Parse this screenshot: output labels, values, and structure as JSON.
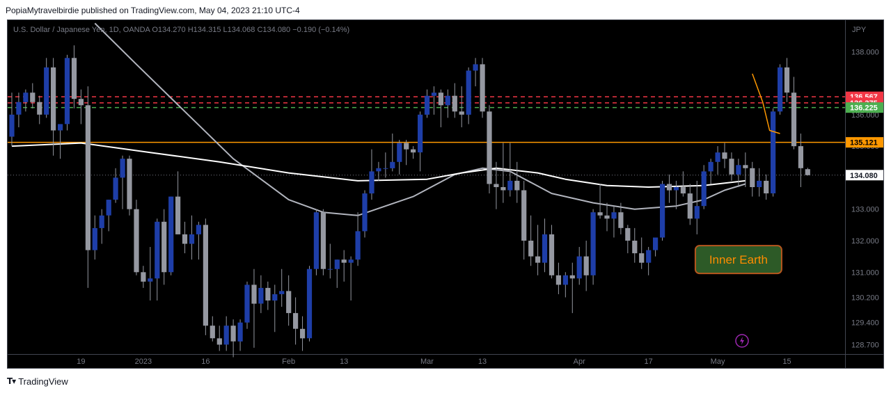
{
  "header": {
    "published": "PopiaMytravelbirdie published on TradingView.com, May 04, 2023 21:10 UTC-4"
  },
  "footer": {
    "brand": "TradingView",
    "logo": "tradingview-logo-icon"
  },
  "colors": {
    "bull": "#1e3ea8",
    "bear": "#9598a1",
    "wick": "#9598a1",
    "red_level": "#f23645",
    "green_level": "#4caf50",
    "orange_level": "#ff9800",
    "label_text_bg": "#2d5a27",
    "label_text_border": "#b8561e",
    "label_text_fg": "#ff8c00"
  },
  "chart_data": {
    "type": "candlestick",
    "instrument": "U.S. Dollar / Japanese Yen, 1D, OANDA",
    "ohlc_legend": {
      "o_label": "O",
      "o": "134.270",
      "h_label": "H",
      "h": "134.315",
      "l_label": "L",
      "l": "134.068",
      "c_label": "C",
      "c": "134.080",
      "change": "−0.190 (−0.14%)"
    },
    "currency": "JPY",
    "y_range": [
      128.4,
      139.0
    ],
    "y_ticks": [
      "138.000",
      "136.000",
      "135.000",
      "133.000",
      "132.000",
      "131.000",
      "130.200",
      "129.400",
      "128.700"
    ],
    "y_tick_values": [
      138.0,
      136.0,
      135.0,
      133.0,
      132.0,
      131.0,
      130.2,
      129.4,
      128.7
    ],
    "x_ticks": [
      {
        "i": 10,
        "label": "19"
      },
      {
        "i": 19,
        "label": "2023"
      },
      {
        "i": 28,
        "label": "16"
      },
      {
        "i": 40,
        "label": "Feb"
      },
      {
        "i": 48,
        "label": "13"
      },
      {
        "i": 60,
        "label": "Mar"
      },
      {
        "i": 68,
        "label": "13"
      },
      {
        "i": 82,
        "label": "Apr"
      },
      {
        "i": 92,
        "label": "17"
      },
      {
        "i": 102,
        "label": "May"
      },
      {
        "i": 112,
        "label": "15"
      }
    ],
    "x_slots": 121,
    "candles": [
      [
        135.3,
        136.7,
        135.0,
        136.0
      ],
      [
        136.0,
        136.7,
        135.6,
        136.4
      ],
      [
        136.4,
        136.8,
        136.1,
        136.7
      ],
      [
        136.7,
        137.0,
        136.2,
        136.4
      ],
      [
        136.4,
        136.6,
        135.7,
        136.0
      ],
      [
        136.0,
        137.8,
        135.9,
        137.5
      ],
      [
        137.5,
        137.8,
        134.7,
        135.5
      ],
      [
        135.5,
        135.7,
        134.6,
        135.7
      ],
      [
        135.7,
        137.9,
        135.5,
        137.8
      ],
      [
        137.8,
        138.2,
        136.2,
        136.5
      ],
      [
        136.5,
        136.8,
        135.7,
        136.3
      ],
      [
        136.3,
        136.9,
        130.5,
        131.7
      ],
      [
        131.7,
        132.8,
        131.4,
        132.4
      ],
      [
        132.4,
        133.0,
        131.9,
        132.8
      ],
      [
        132.8,
        133.3,
        132.3,
        133.3
      ],
      [
        133.3,
        134.3,
        133.2,
        134.0
      ],
      [
        134.0,
        134.7,
        133.0,
        134.6
      ],
      [
        134.6,
        134.7,
        132.8,
        133.0
      ],
      [
        133.0,
        133.3,
        130.9,
        131.0
      ],
      [
        131.0,
        131.2,
        130.5,
        130.7
      ],
      [
        130.7,
        131.8,
        130.1,
        130.8
      ],
      [
        130.8,
        132.7,
        130.1,
        132.6
      ],
      [
        132.6,
        133.0,
        130.6,
        131.0
      ],
      [
        131.0,
        133.4,
        130.9,
        133.4
      ],
      [
        133.4,
        134.2,
        132.2,
        132.2
      ],
      [
        132.2,
        132.6,
        131.6,
        131.9
      ],
      [
        131.9,
        132.8,
        131.4,
        132.2
      ],
      [
        132.2,
        132.6,
        131.4,
        132.5
      ],
      [
        132.5,
        132.7,
        129.0,
        129.3
      ],
      [
        129.3,
        129.6,
        128.8,
        128.9
      ],
      [
        128.9,
        129.3,
        128.5,
        128.7
      ],
      [
        128.7,
        129.6,
        128.5,
        129.3
      ],
      [
        129.3,
        129.5,
        128.3,
        128.8
      ],
      [
        128.8,
        129.5,
        128.5,
        129.4
      ],
      [
        129.4,
        130.7,
        129.2,
        130.6
      ],
      [
        130.6,
        131.1,
        128.6,
        130.0
      ],
      [
        130.0,
        130.9,
        129.7,
        130.5
      ],
      [
        130.5,
        130.7,
        129.8,
        130.1
      ],
      [
        130.1,
        130.6,
        129.1,
        130.3
      ],
      [
        130.3,
        131.1,
        129.9,
        130.4
      ],
      [
        130.4,
        130.9,
        129.3,
        129.7
      ],
      [
        129.7,
        130.2,
        128.7,
        129.2
      ],
      [
        129.2,
        129.6,
        128.5,
        128.9
      ],
      [
        128.9,
        131.2,
        128.8,
        131.1
      ],
      [
        131.1,
        133.0,
        130.9,
        132.9
      ],
      [
        132.9,
        133.0,
        130.9,
        131.1
      ],
      [
        131.1,
        131.9,
        130.8,
        131.1
      ],
      [
        131.1,
        131.4,
        130.5,
        131.4
      ],
      [
        131.4,
        131.7,
        130.7,
        131.3
      ],
      [
        131.3,
        131.5,
        130.1,
        131.4
      ],
      [
        131.4,
        132.9,
        131.2,
        132.3
      ],
      [
        132.3,
        133.6,
        132.1,
        133.5
      ],
      [
        133.5,
        134.9,
        133.3,
        134.2
      ],
      [
        134.2,
        134.5,
        133.9,
        134.3
      ],
      [
        134.3,
        134.8,
        134.0,
        134.3
      ],
      [
        134.3,
        135.4,
        134.2,
        134.5
      ],
      [
        134.5,
        135.2,
        134.1,
        135.1
      ],
      [
        135.1,
        135.2,
        134.4,
        134.9
      ],
      [
        134.9,
        135.0,
        134.6,
        134.8
      ],
      [
        134.8,
        136.1,
        134.2,
        136.0
      ],
      [
        136.0,
        136.8,
        135.9,
        136.6
      ],
      [
        136.6,
        136.9,
        136.0,
        136.7
      ],
      [
        136.7,
        136.8,
        135.6,
        136.3
      ],
      [
        136.3,
        136.8,
        135.9,
        136.6
      ],
      [
        136.6,
        137.0,
        135.9,
        136.1
      ],
      [
        136.1,
        136.9,
        135.6,
        136.0
      ],
      [
        136.0,
        137.5,
        135.7,
        137.4
      ],
      [
        137.4,
        137.8,
        136.9,
        137.6
      ],
      [
        137.6,
        137.8,
        135.9,
        136.1
      ],
      [
        136.1,
        136.3,
        133.5,
        133.8
      ],
      [
        133.8,
        134.5,
        133.0,
        133.7
      ],
      [
        133.7,
        135.1,
        133.2,
        133.6
      ],
      [
        133.6,
        135.1,
        133.4,
        133.9
      ],
      [
        133.9,
        134.5,
        133.2,
        133.6
      ],
      [
        133.6,
        133.9,
        131.4,
        132.0
      ],
      [
        132.0,
        132.8,
        131.2,
        131.5
      ],
      [
        131.5,
        132.5,
        130.9,
        131.3
      ],
      [
        131.3,
        132.7,
        131.0,
        132.2
      ],
      [
        132.2,
        132.5,
        130.8,
        130.9
      ],
      [
        130.9,
        131.3,
        130.3,
        130.6
      ],
      [
        130.6,
        131.0,
        130.2,
        130.9
      ],
      [
        130.9,
        131.3,
        129.7,
        130.8
      ],
      [
        130.8,
        131.8,
        130.6,
        131.5
      ],
      [
        131.5,
        132.0,
        130.4,
        130.9
      ],
      [
        130.9,
        133.0,
        130.6,
        132.9
      ],
      [
        132.9,
        133.8,
        132.7,
        132.8
      ],
      [
        132.8,
        133.2,
        132.3,
        132.7
      ],
      [
        132.7,
        133.1,
        132.1,
        132.9
      ],
      [
        132.9,
        133.2,
        132.2,
        132.4
      ],
      [
        132.4,
        132.5,
        131.6,
        132.0
      ],
      [
        132.0,
        132.4,
        131.3,
        131.6
      ],
      [
        131.6,
        132.1,
        131.1,
        131.3
      ],
      [
        131.3,
        131.8,
        130.9,
        131.7
      ],
      [
        131.7,
        132.0,
        131.5,
        132.1
      ],
      [
        132.1,
        133.9,
        132.0,
        133.8
      ],
      [
        133.8,
        134.1,
        133.2,
        133.6
      ],
      [
        133.6,
        133.9,
        133.0,
        133.7
      ],
      [
        133.7,
        134.2,
        133.4,
        133.5
      ],
      [
        133.5,
        133.8,
        132.5,
        132.7
      ],
      [
        132.7,
        133.9,
        132.2,
        133.1
      ],
      [
        133.1,
        134.4,
        133.0,
        134.2
      ],
      [
        134.2,
        134.6,
        133.8,
        134.5
      ],
      [
        134.5,
        135.0,
        134.1,
        134.8
      ],
      [
        134.8,
        135.1,
        134.3,
        134.6
      ],
      [
        134.6,
        134.8,
        133.9,
        134.1
      ],
      [
        134.1,
        134.6,
        133.7,
        134.4
      ],
      [
        134.4,
        134.8,
        133.7,
        134.3
      ],
      [
        134.3,
        134.5,
        133.4,
        133.7
      ],
      [
        133.7,
        134.3,
        133.4,
        133.9
      ],
      [
        133.9,
        134.1,
        133.3,
        133.5
      ],
      [
        133.5,
        136.2,
        133.4,
        136.1
      ],
      [
        136.1,
        137.6,
        136.0,
        137.5
      ],
      [
        137.5,
        137.8,
        136.4,
        136.7
      ],
      [
        136.7,
        137.2,
        134.9,
        135.0
      ],
      [
        135.0,
        135.4,
        133.7,
        134.3
      ],
      [
        134.27,
        134.315,
        134.068,
        134.08
      ]
    ],
    "levels": [
      {
        "price": 136.567,
        "label": "136.567",
        "style": "dashed",
        "color": "#f23645"
      },
      {
        "price": 136.375,
        "label": "136.375",
        "style": "dashed",
        "color": "#f23645"
      },
      {
        "price": 136.225,
        "label": "136.225",
        "style": "dashed",
        "color": "#4caf50"
      },
      {
        "price": 135.121,
        "label": "135.121",
        "style": "solid",
        "color": "#ff9800"
      }
    ],
    "last_price": {
      "price": 134.08,
      "label": "134.080"
    },
    "ma_white": [
      [
        0,
        135.0
      ],
      [
        10,
        135.1
      ],
      [
        20,
        134.8
      ],
      [
        30,
        134.5
      ],
      [
        40,
        134.15
      ],
      [
        50,
        133.9
      ],
      [
        60,
        133.95
      ],
      [
        65,
        134.15
      ],
      [
        70,
        134.3
      ],
      [
        76,
        134.15
      ],
      [
        80,
        133.95
      ],
      [
        86,
        133.75
      ],
      [
        92,
        133.7
      ],
      [
        100,
        133.75
      ],
      [
        106,
        133.9
      ]
    ],
    "ma_gray": [
      [
        12,
        138.9
      ],
      [
        18,
        137.6
      ],
      [
        25,
        136.1
      ],
      [
        32,
        134.6
      ],
      [
        40,
        133.3
      ],
      [
        45,
        132.9
      ],
      [
        50,
        132.8
      ],
      [
        58,
        133.4
      ],
      [
        64,
        134.1
      ],
      [
        68,
        134.3
      ],
      [
        72,
        134.2
      ],
      [
        78,
        133.5
      ],
      [
        84,
        133.2
      ],
      [
        90,
        133.0
      ],
      [
        96,
        133.1
      ],
      [
        100,
        133.3
      ],
      [
        103,
        133.6
      ],
      [
        106,
        133.8
      ]
    ],
    "ma_orange": [
      [
        107,
        137.3
      ],
      [
        108.5,
        136.4
      ],
      [
        109.5,
        135.5
      ],
      [
        111,
        135.4
      ]
    ],
    "annotation": {
      "text": "Inner Earth",
      "i": 105,
      "price": 131.4
    },
    "lightning_icon": "lightning-icon"
  }
}
